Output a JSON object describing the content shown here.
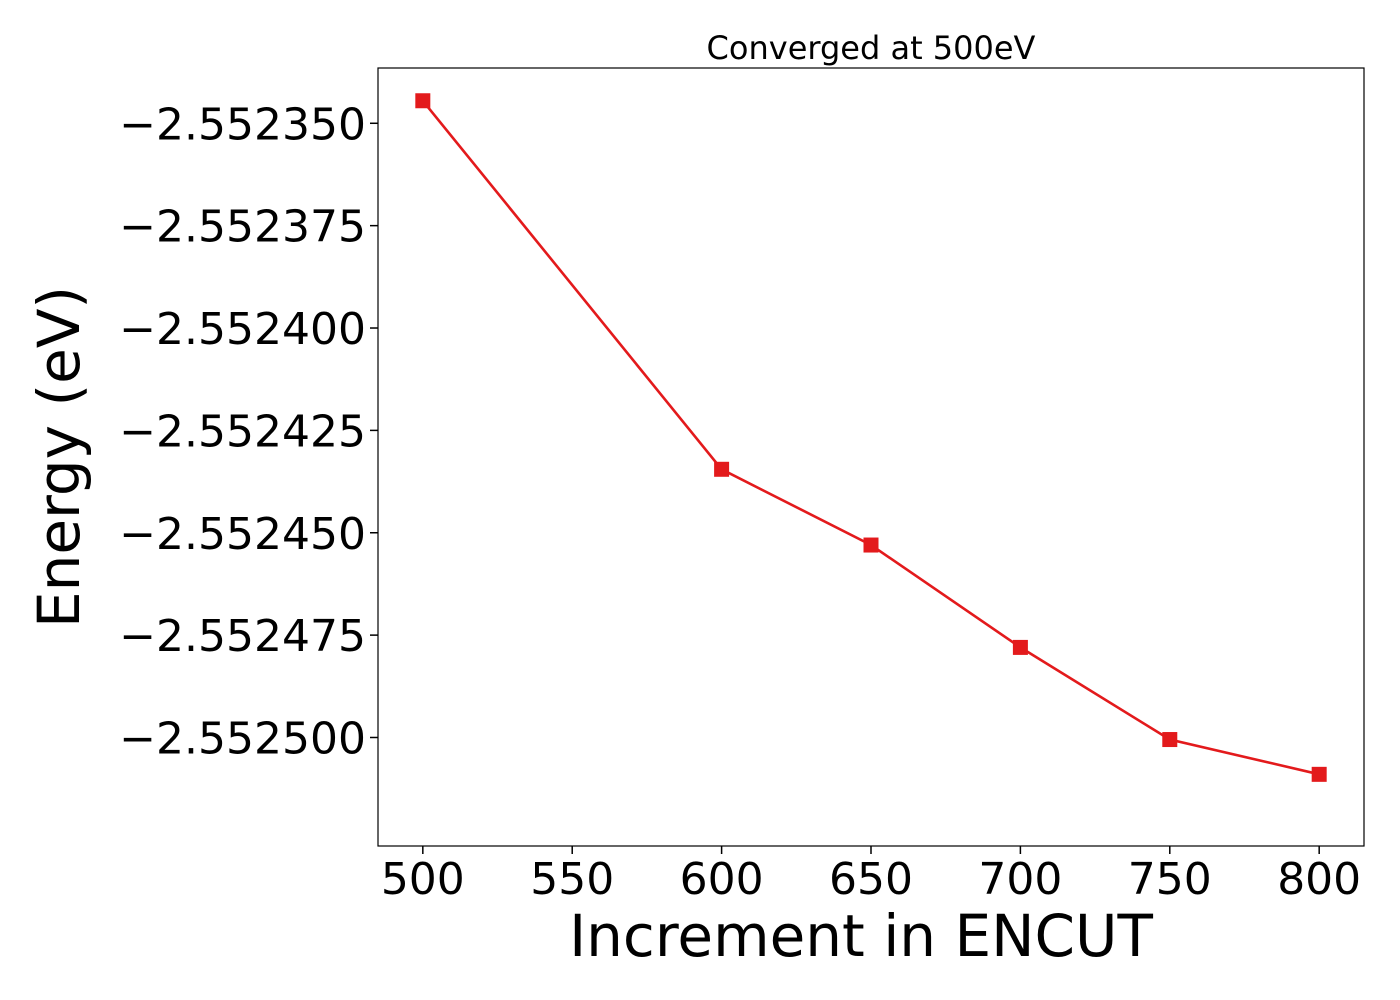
{
  "chart_data": {
    "type": "line",
    "title": "Converged at 500eV",
    "xlabel": "Increment in ENCUT",
    "ylabel": "Energy (eV)",
    "x": [
      500,
      600,
      650,
      700,
      750,
      800
    ],
    "series": [
      {
        "values": [
          -2.5523445,
          -2.5524345,
          -2.552453,
          -2.552478,
          -2.5525005,
          -2.552509
        ],
        "color": "#e31a1c",
        "marker": "square"
      }
    ],
    "xticks": [
      500,
      550,
      600,
      650,
      700,
      750,
      800
    ],
    "xtick_labels": [
      "500",
      "550",
      "600",
      "650",
      "700",
      "750",
      "800"
    ],
    "yticks": [
      -2.55235,
      -2.552375,
      -2.5524,
      -2.552425,
      -2.55245,
      -2.552475,
      -2.5525
    ],
    "ytick_labels": [
      "−2.552350",
      "−2.552375",
      "−2.552400",
      "−2.552425",
      "−2.552450",
      "−2.552475",
      "−2.552500"
    ],
    "xlim": [
      485,
      815
    ],
    "ylim": [
      -2.5525265,
      -2.5523365
    ],
    "grid": false,
    "legend": "none"
  }
}
